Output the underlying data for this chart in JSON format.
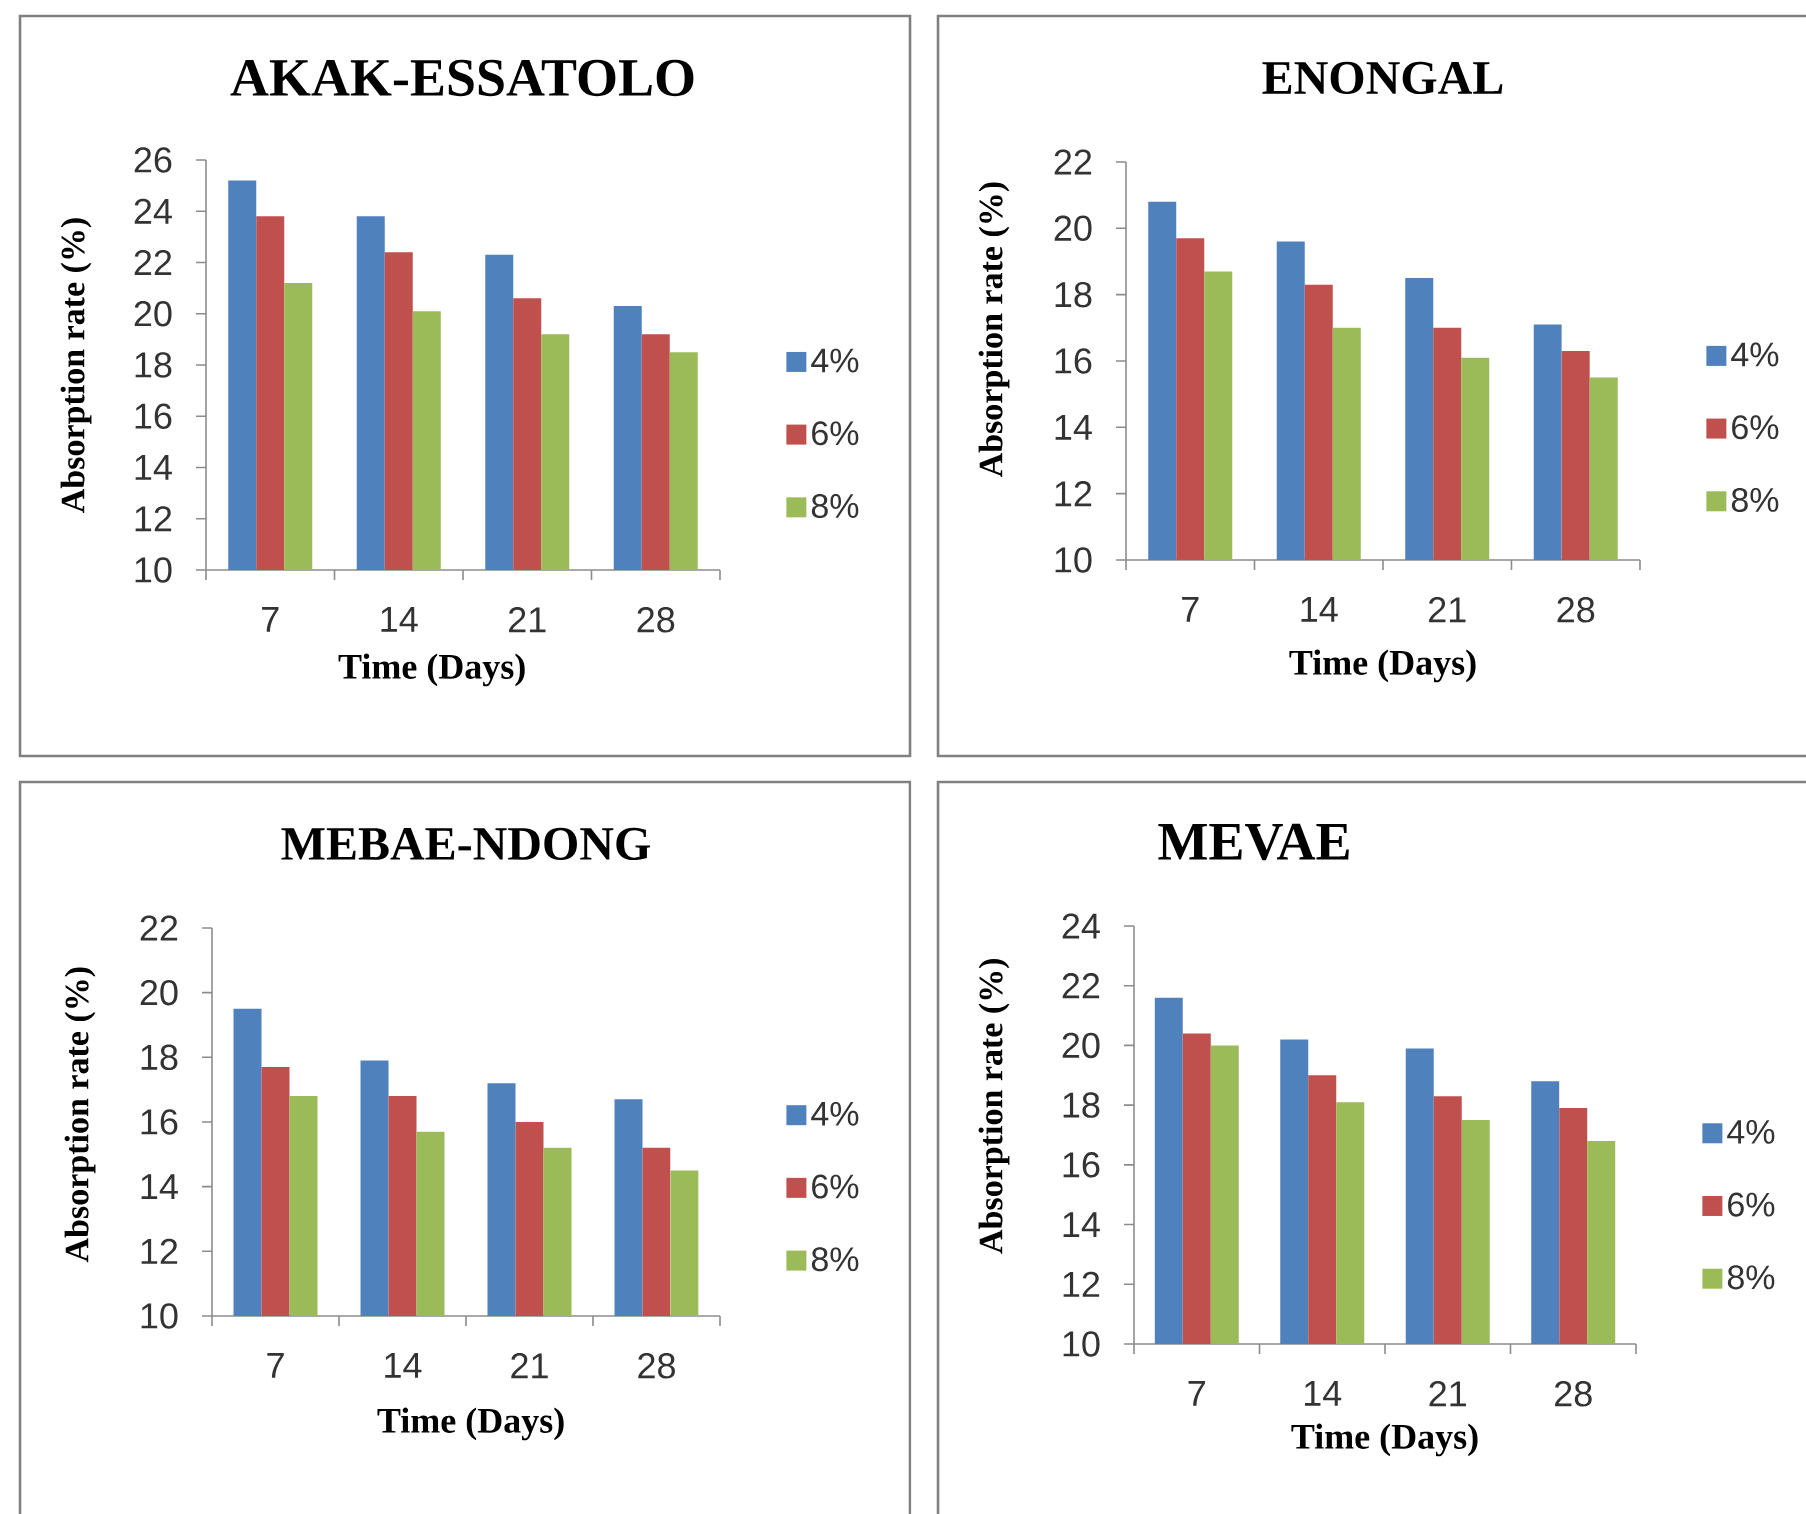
{
  "chart_data": [
    {
      "type": "bar",
      "title": "AKAK-ESSATOLO",
      "xlabel": "Time (Days)",
      "ylabel": "Absorption rate (%)",
      "categories": [
        "7",
        "14",
        "21",
        "28"
      ],
      "series": [
        {
          "name": "4%",
          "color": "#4f81bd",
          "values": [
            25.2,
            23.8,
            22.3,
            20.3
          ]
        },
        {
          "name": "6%",
          "color": "#c0504d",
          "values": [
            23.8,
            22.4,
            20.6,
            19.2
          ]
        },
        {
          "name": "8%",
          "color": "#9bbb59",
          "values": [
            21.2,
            20.1,
            19.2,
            18.5
          ]
        }
      ],
      "ylim": [
        10,
        26
      ],
      "yticks": [
        10,
        12,
        14,
        16,
        18,
        20,
        22,
        24,
        26
      ],
      "legend": "right"
    },
    {
      "type": "bar",
      "title": "ENONGAL",
      "xlabel": "Time (Days)",
      "ylabel": "Absorption rate (%)",
      "categories": [
        "7",
        "14",
        "21",
        "28"
      ],
      "series": [
        {
          "name": "4%",
          "color": "#4f81bd",
          "values": [
            20.8,
            19.6,
            18.5,
            17.1
          ]
        },
        {
          "name": "6%",
          "color": "#c0504d",
          "values": [
            19.7,
            18.3,
            17.0,
            16.3
          ]
        },
        {
          "name": "8%",
          "color": "#9bbb59",
          "values": [
            18.7,
            17.0,
            16.1,
            15.5
          ]
        }
      ],
      "ylim": [
        10,
        22
      ],
      "yticks": [
        10,
        12,
        14,
        16,
        18,
        20,
        22
      ],
      "legend": "right"
    },
    {
      "type": "bar",
      "title": "MEBAE-NDONG",
      "xlabel": "Time (Days)",
      "ylabel": "Absorption rate (%)",
      "categories": [
        "7",
        "14",
        "21",
        "28"
      ],
      "series": [
        {
          "name": "4%",
          "color": "#4f81bd",
          "values": [
            19.5,
            17.9,
            17.2,
            16.7
          ]
        },
        {
          "name": "6%",
          "color": "#c0504d",
          "values": [
            17.7,
            16.8,
            16.0,
            15.2
          ]
        },
        {
          "name": "8%",
          "color": "#9bbb59",
          "values": [
            16.8,
            15.7,
            15.2,
            14.5
          ]
        }
      ],
      "ylim": [
        10,
        22
      ],
      "yticks": [
        10,
        12,
        14,
        16,
        18,
        20,
        22
      ],
      "legend": "right"
    },
    {
      "type": "bar",
      "title": "MEVAE",
      "xlabel": "Time (Days)",
      "ylabel": "Absorption rate (%)",
      "categories": [
        "7",
        "14",
        "21",
        "28"
      ],
      "series": [
        {
          "name": "4%",
          "color": "#4f81bd",
          "values": [
            21.6,
            20.2,
            19.9,
            18.8
          ]
        },
        {
          "name": "6%",
          "color": "#c0504d",
          "values": [
            20.4,
            19.0,
            18.3,
            17.9
          ]
        },
        {
          "name": "8%",
          "color": "#9bbb59",
          "values": [
            20.0,
            18.1,
            17.5,
            16.8
          ]
        }
      ],
      "ylim": [
        10,
        24
      ],
      "yticks": [
        10,
        12,
        14,
        16,
        18,
        20,
        22,
        24
      ],
      "legend": "right"
    }
  ]
}
